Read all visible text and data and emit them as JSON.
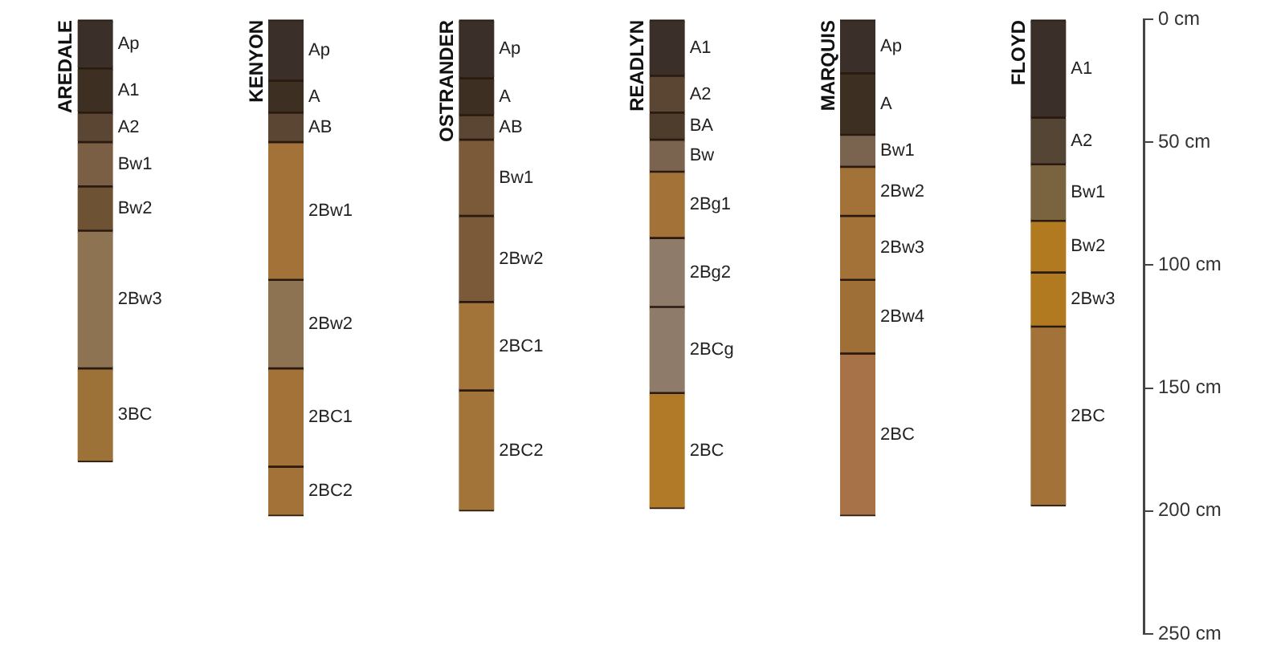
{
  "chart_data": {
    "type": "bar",
    "stacked": true,
    "categories": [
      "AREDALE",
      "KENYON",
      "OSTRANDER",
      "READLYN",
      "MARQUIS",
      "FLOYD"
    ],
    "ylim": [
      250,
      0
    ],
    "yticks": [
      {
        "value": 0,
        "label": "0 cm"
      },
      {
        "value": 50,
        "label": "50 cm"
      },
      {
        "value": 100,
        "label": "100 cm"
      },
      {
        "value": 150,
        "label": "150 cm"
      },
      {
        "value": 200,
        "label": "200 cm"
      },
      {
        "value": 250,
        "label": "250 cm"
      }
    ],
    "series": [
      {
        "values": [
          20,
          25,
          24,
          23,
          22,
          40
        ],
        "colors": [
          "#3a3029",
          "#3a3029",
          "#3a3029",
          "#3a3029",
          "#3a3029",
          "#3a3029"
        ]
      },
      {
        "values": [
          18,
          13,
          15,
          15,
          25,
          19
        ],
        "colors": [
          "#3d2f22",
          "#3d2f22",
          "#3d2f22",
          "#5a4633",
          "#3d2f22",
          "#544535"
        ]
      },
      {
        "values": [
          12,
          12,
          10,
          11,
          13,
          23
        ],
        "colors": [
          "#5a4633",
          "#5a4633",
          "#5a4633",
          "#4e3c2c",
          "#7a6450",
          "#7a6440"
        ]
      },
      {
        "values": [
          18,
          56,
          31,
          13,
          20,
          21
        ],
        "colors": [
          "#7a5f44",
          "#a27238",
          "#7a5a38",
          "#7a6450",
          "#a27238",
          "#b27a20"
        ]
      },
      {
        "values": [
          18,
          36,
          35,
          27,
          26,
          22
        ],
        "colors": [
          "#6e5234",
          "#8e7352",
          "#7a5a38",
          "#a27238",
          "#a27238",
          "#b27a20"
        ]
      },
      {
        "values": [
          56,
          40,
          36,
          28,
          30,
          73
        ],
        "colors": [
          "#8e7352",
          "#a27238",
          "#a37439",
          "#8e7b6a",
          "#9e7038",
          "#a27238"
        ]
      },
      {
        "values": [
          38,
          20,
          49,
          35,
          66,
          null
        ],
        "colors": [
          "#9c7238",
          "#a27238",
          "#a37439",
          "#8e7b6a",
          "#a87248",
          null
        ]
      },
      {
        "values": [
          null,
          null,
          null,
          47,
          null,
          null
        ],
        "colors": [
          null,
          null,
          null,
          "#b07a28",
          null,
          null
        ]
      }
    ],
    "annotations": [
      "Ap",
      "A1",
      "A2",
      "Bw1",
      "Bw2",
      "2Bw3",
      "3BC",
      "Ap",
      "A",
      "AB",
      "2Bw1",
      "2Bw2",
      "2BC1",
      "2BC2",
      "Ap",
      "A",
      "AB",
      "Bw1",
      "2Bw2",
      "2BC1",
      "2BC2",
      "A1",
      "A2",
      "BA",
      "Bw",
      "2Bg1",
      "2Bg2",
      "2BCg",
      "2BC",
      "Ap",
      "A",
      "Bw1",
      "2Bw2",
      "2Bw3",
      "2Bw4",
      "2BC",
      "A1",
      "A2",
      "Bw1",
      "Bw2",
      "2Bw3",
      "2BC"
    ]
  }
}
